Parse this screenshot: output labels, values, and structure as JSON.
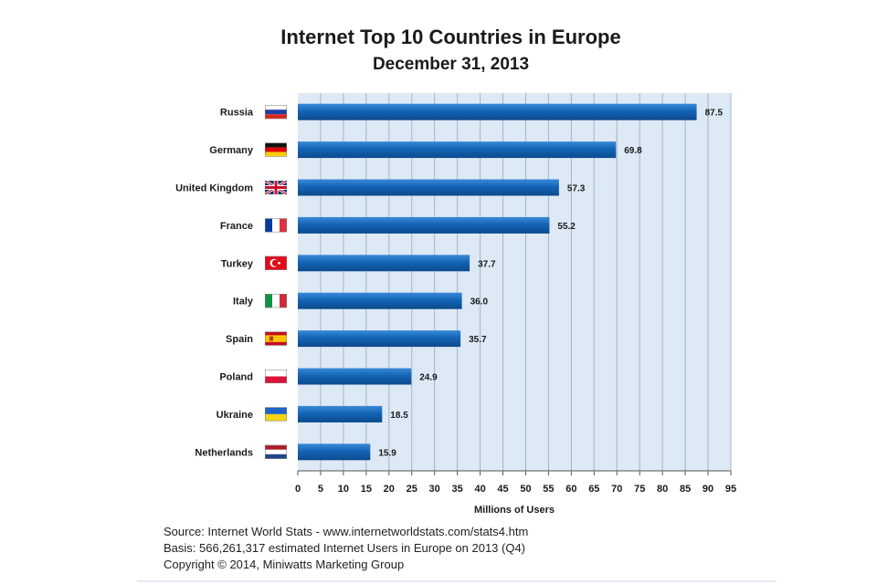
{
  "colors": {
    "plot_bg": "#dde9f5",
    "grid": "#9fb6cd",
    "bar_top": "#3a8ad8",
    "bar_mid": "#1464b6",
    "bar_bottom": "#0c4a8c",
    "text": "#1a1a1a"
  },
  "chart_data": {
    "type": "bar",
    "orientation": "horizontal",
    "title": "Internet Top 10 Countries in Europe",
    "subtitle": "December 31, 2013",
    "xlabel": "Millions of Users",
    "ylabel": "",
    "xlim": [
      0,
      95
    ],
    "xticks": [
      0,
      5,
      10,
      15,
      20,
      25,
      30,
      35,
      40,
      45,
      50,
      55,
      60,
      65,
      70,
      75,
      80,
      85,
      90,
      95
    ],
    "grid": true,
    "categories": [
      "Russia",
      "Germany",
      "United Kingdom",
      "France",
      "Turkey",
      "Italy",
      "Spain",
      "Poland",
      "Ukraine",
      "Netherlands"
    ],
    "flags": [
      "flag-russia",
      "flag-germany",
      "flag-united-kingdom",
      "flag-france",
      "flag-turkey",
      "flag-italy",
      "flag-spain",
      "flag-poland",
      "flag-ukraine",
      "flag-netherlands"
    ],
    "values": [
      87.5,
      69.8,
      57.3,
      55.2,
      37.7,
      36.0,
      35.7,
      24.9,
      18.5,
      15.9
    ],
    "value_labels": [
      "87.5",
      "69.8",
      "57.3",
      "55.2",
      "37.7",
      "36.0",
      "35.7",
      "24.9",
      "18.5",
      "15.9"
    ]
  },
  "footer": {
    "source": "Source: Internet World Stats  -  www.internetworldstats.com/stats4.htm",
    "basis": "Basis: 566,261,317 estimated Internet  Users in Europe on 2013 (Q4)",
    "copyright": "Copyright © 2014, Miniwatts Marketing Group"
  }
}
